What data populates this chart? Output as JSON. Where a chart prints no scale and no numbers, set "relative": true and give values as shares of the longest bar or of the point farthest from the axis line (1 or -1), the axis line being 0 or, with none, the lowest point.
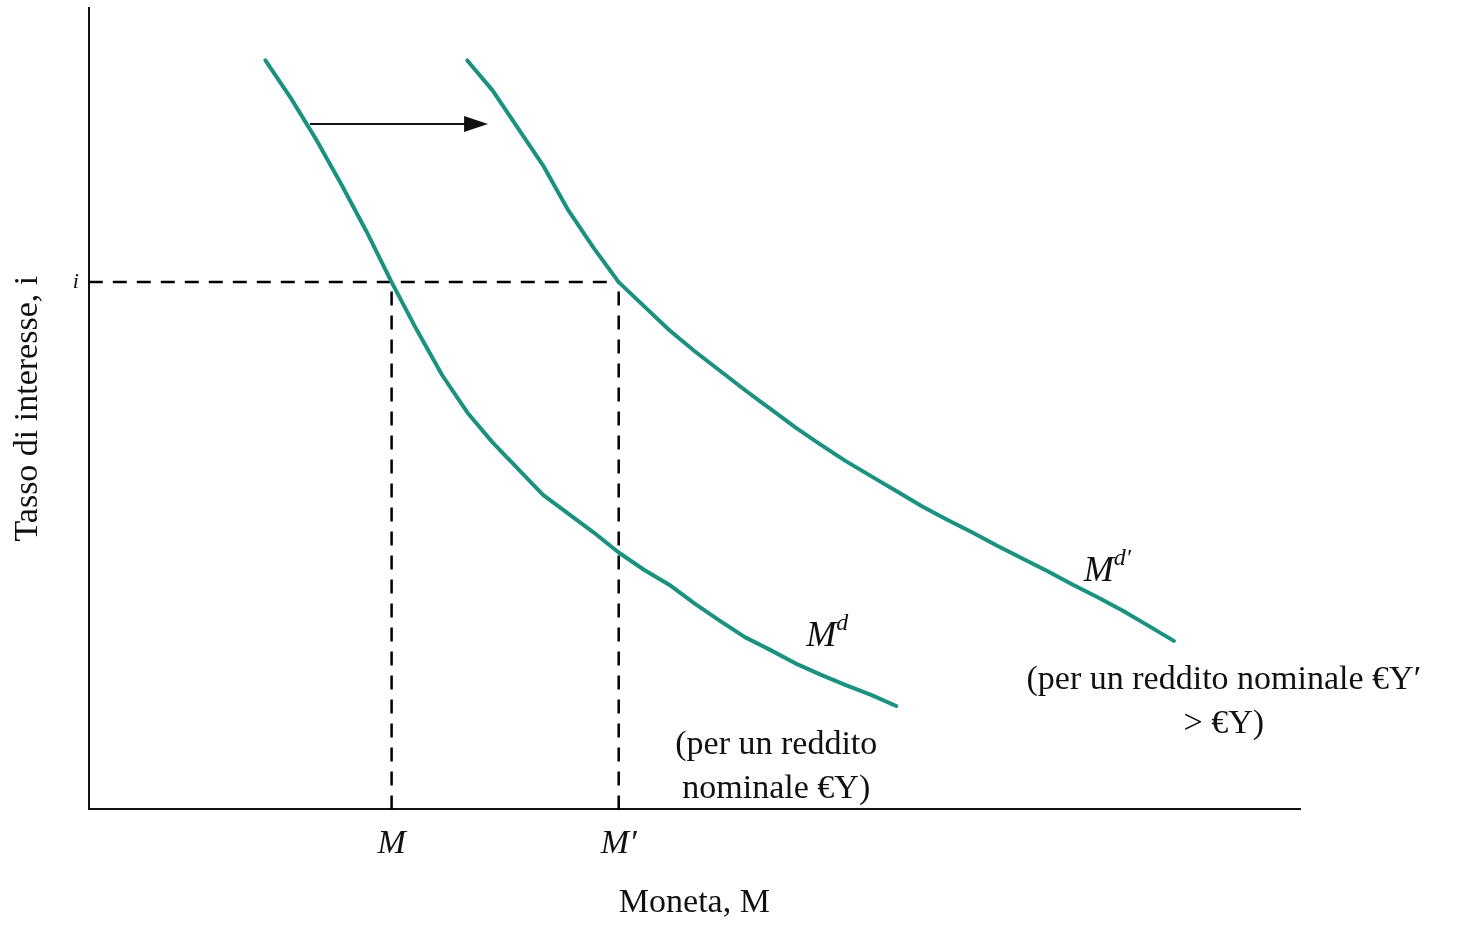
{
  "chart_data": {
    "type": "line",
    "relative": true,
    "xlabel": "Moneta, M",
    "ylabel": "Tasso di interesse, i",
    "categories": [
      null,
      null,
      null,
      null,
      null,
      null,
      null,
      null,
      null,
      null,
      null,
      null,
      "M",
      null,
      null,
      null,
      null,
      null,
      null,
      null,
      null,
      "M′",
      null,
      null,
      null,
      null,
      null,
      null,
      null,
      null,
      null,
      null,
      null,
      null,
      null,
      null,
      null,
      null,
      null,
      null,
      null,
      null,
      null,
      null,
      null,
      null,
      null,
      null,
      null
    ],
    "legend": false,
    "marker": "none",
    "series": [
      {
        "name": "M$^{d}$",
        "color": "#1b927f",
        "values": [
          null,
          null,
          null,
          null,
          null,
          null,
          null,
          1.0,
          0.95,
          0.895,
          0.835,
          0.772,
          0.704,
          0.64,
          0.58,
          0.53,
          0.49,
          0.455,
          0.42,
          0.395,
          0.37,
          0.343,
          0.32,
          0.3,
          0.275,
          0.252,
          0.23,
          0.213,
          0.195,
          0.18,
          0.166,
          0.153,
          0.138,
          null,
          null,
          null,
          null,
          null,
          null,
          null,
          null,
          null,
          null,
          null,
          null,
          null,
          null,
          null,
          null
        ]
      },
      {
        "name": "M$^{d′}$",
        "color": "#1b927f",
        "values": [
          null,
          null,
          null,
          null,
          null,
          null,
          null,
          null,
          null,
          null,
          null,
          null,
          null,
          null,
          null,
          1.0,
          0.96,
          0.91,
          0.86,
          0.8,
          0.75,
          0.704,
          0.672,
          0.64,
          0.612,
          0.586,
          0.56,
          0.535,
          0.51,
          0.487,
          0.465,
          0.445,
          0.425,
          0.405,
          0.387,
          0.37,
          0.352,
          0.335,
          0.318,
          0.3,
          0.283,
          0.265,
          0.245,
          0.225,
          null,
          null,
          null,
          null,
          null
        ]
      }
    ],
    "ref_lines": [
      {
        "axis": "y",
        "value": 0.704,
        "label": "i",
        "color": "#000000",
        "line_style": "dashed"
      },
      {
        "axis": "x",
        "value": "M",
        "color": "#000000",
        "line_style": "dashed"
      },
      {
        "axis": "x",
        "value": "M′",
        "color": "#000000",
        "line_style": "dashed"
      }
    ],
    "annotations": [
      "(per un reddito nominale €Y)",
      "(per un reddito nominale €Y′ > €Y)"
    ]
  }
}
